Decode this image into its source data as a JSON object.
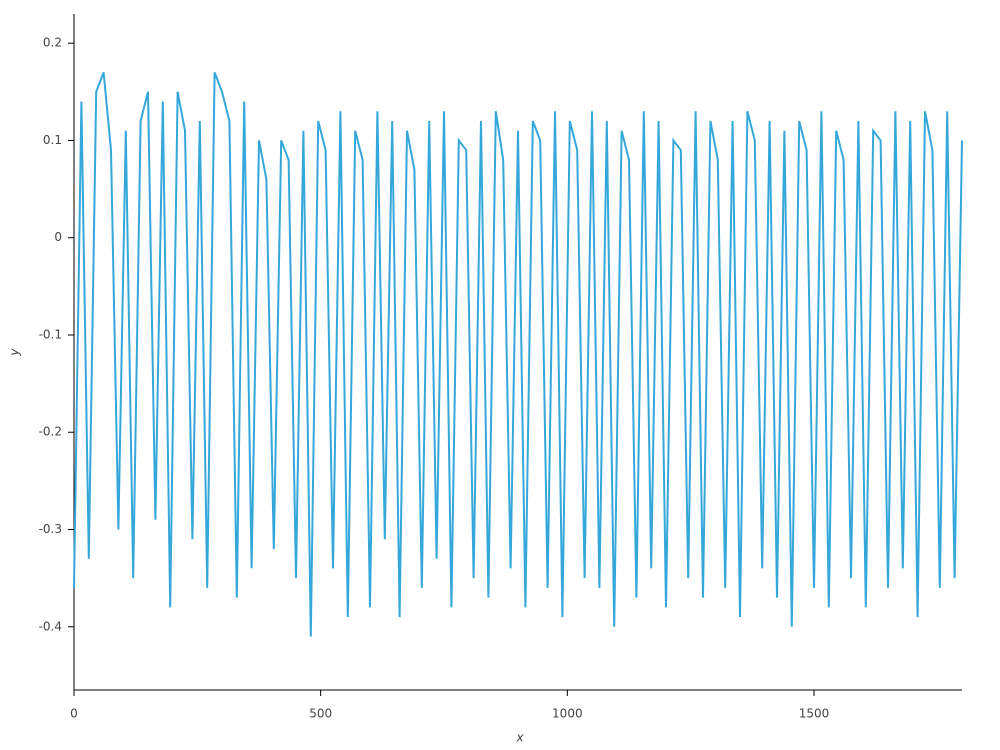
{
  "chart_data": {
    "type": "line",
    "x_label": "x",
    "y_label": "y",
    "x": [
      0,
      15,
      30,
      45,
      60,
      75,
      90,
      105,
      120,
      135,
      150,
      165,
      180,
      195,
      210,
      225,
      240,
      255,
      270,
      285,
      300,
      315,
      330,
      345,
      360,
      375,
      390,
      405,
      420,
      435,
      450,
      465,
      480,
      495,
      510,
      525,
      540,
      555,
      570,
      585,
      600,
      615,
      630,
      645,
      660,
      675,
      690,
      705,
      720,
      735,
      750,
      765,
      780,
      795,
      810,
      825,
      840,
      855,
      870,
      885,
      900,
      915,
      930,
      945,
      960,
      975,
      990,
      1005,
      1020,
      1035,
      1050,
      1065,
      1080,
      1095,
      1110,
      1125,
      1140,
      1155,
      1170,
      1185,
      1200,
      1215,
      1230,
      1245,
      1260,
      1275,
      1290,
      1305,
      1320,
      1335,
      1350,
      1365,
      1380,
      1395,
      1410,
      1425,
      1440,
      1455,
      1470,
      1485,
      1500,
      1515,
      1530,
      1545,
      1560,
      1575,
      1590,
      1605,
      1620,
      1635,
      1650,
      1665,
      1680,
      1695,
      1710,
      1725,
      1740,
      1755,
      1770,
      1785,
      1800
    ],
    "series": [
      {
        "color": "#35a7db",
        "values": [
          -0.36,
          0.14,
          -0.33,
          0.15,
          0.17,
          0.09,
          -0.3,
          0.11,
          -0.35,
          0.12,
          0.15,
          -0.29,
          0.14,
          -0.38,
          0.15,
          0.11,
          -0.31,
          0.12,
          -0.36,
          0.17,
          0.15,
          0.12,
          -0.37,
          0.14,
          -0.34,
          0.1,
          0.06,
          -0.32,
          0.1,
          0.08,
          -0.35,
          0.11,
          -0.41,
          0.12,
          0.09,
          -0.34,
          0.13,
          -0.39,
          0.11,
          0.08,
          -0.38,
          0.13,
          -0.31,
          0.12,
          -0.39,
          0.11,
          0.07,
          -0.36,
          0.12,
          -0.33,
          0.13,
          -0.38,
          0.1,
          0.09,
          -0.35,
          0.12,
          -0.37,
          0.13,
          0.08,
          -0.34,
          0.11,
          -0.38,
          0.12,
          0.1,
          -0.36,
          0.13,
          -0.39,
          0.12,
          0.09,
          -0.35,
          0.13,
          -0.36,
          0.12,
          -0.4,
          0.11,
          0.08,
          -0.37,
          0.13,
          -0.34,
          0.12,
          -0.38,
          0.1,
          0.09,
          -0.35,
          0.13,
          -0.37,
          0.12,
          0.08,
          -0.36,
          0.12,
          -0.39,
          0.13,
          0.1,
          -0.34,
          0.12,
          -0.37,
          0.11,
          -0.4,
          0.12,
          0.09,
          -0.36,
          0.13,
          -0.38,
          0.11,
          0.08,
          -0.35,
          0.12,
          -0.38,
          0.11,
          0.1,
          -0.36,
          0.13,
          -0.34,
          0.12,
          -0.39,
          0.13,
          0.09,
          -0.36,
          0.13,
          -0.35,
          0.1
        ]
      }
    ],
    "xlim": [
      0,
      1800
    ],
    "ylim": [
      -0.465,
      0.23
    ],
    "xticks": [
      0,
      500,
      1000,
      1500
    ],
    "yticks": [
      -0.4,
      -0.3,
      -0.2,
      -0.1,
      0,
      0.1,
      0.2
    ]
  }
}
